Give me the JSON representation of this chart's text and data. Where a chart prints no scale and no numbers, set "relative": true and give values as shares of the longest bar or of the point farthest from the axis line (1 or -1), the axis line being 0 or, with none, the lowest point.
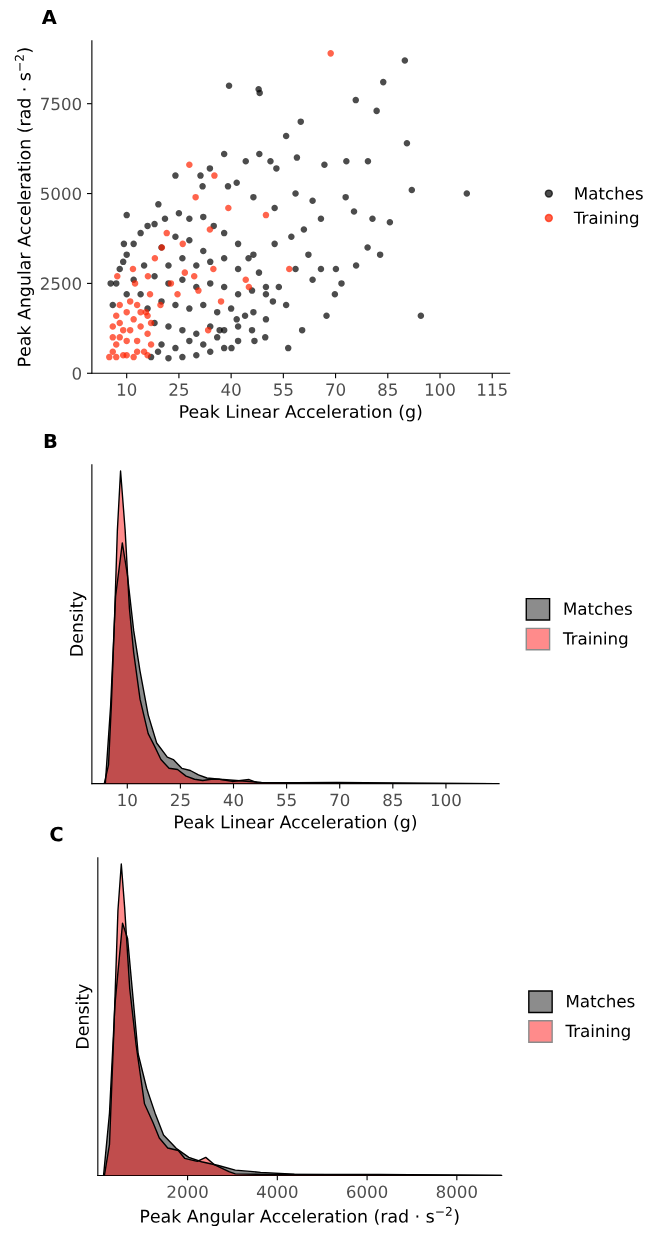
{
  "chart_data": [
    {
      "type": "scatter",
      "title": "A",
      "xlabel": "Peak Linear Acceleration (g)",
      "ylabel": "Peak Angular Acceleration (rad · s$^{−2}$)",
      "xlim": [
        0,
        120
      ],
      "xticks": [
        10,
        25,
        40,
        55,
        70,
        85,
        100,
        115
      ],
      "ylim": [
        0,
        9250
      ],
      "yticks": [
        0,
        2500,
        5000,
        7500
      ],
      "legend": "right",
      "marker": "circle",
      "grid": false,
      "series": [
        {
          "name": "Matches",
          "color": "#000000",
          "x": [
            39.4,
            47.9,
            48.2,
            89.9,
            83.7,
            75.8,
            81.8,
            60.0,
            55.8,
            90.5,
            38.0,
            48.1,
            79.3,
            73.1,
            66.8,
            58.9,
            91.9,
            107.7,
            72.9,
            75.3,
            80.6,
            85.6,
            79.2,
            82.8,
            75.9,
            70.1,
            71.7,
            69.8,
            67.4,
            94.5,
            60.4,
            56.4,
            49.8,
            46.7,
            40.1,
            24.0,
            31.2,
            33.9,
            31.8,
            44.2,
            51.3,
            53.0,
            39.1,
            41.6,
            19.1,
            46.4,
            52.5,
            58.5,
            63.4,
            65.8,
            60.9,
            57.3,
            52.5,
            46.4,
            62.2,
            65.8,
            58.5,
            63.4,
            53.7,
            50.0,
            55.8,
            46.4,
            41.6,
            36.7,
            10.0,
            9.2,
            5.4,
            6,
            7,
            8,
            9,
            10,
            12,
            14,
            16,
            18,
            21,
            25,
            28,
            32,
            35,
            38,
            42,
            45,
            48,
            50,
            52,
            50,
            46,
            42,
            38,
            34,
            30,
            26,
            22,
            20,
            24,
            28,
            32,
            22,
            26,
            30,
            34,
            38,
            42,
            18,
            22,
            26,
            30,
            34,
            38,
            42,
            46,
            20,
            24,
            28,
            32,
            36,
            40,
            44,
            18,
            22,
            26,
            30,
            34,
            38,
            42,
            20,
            24,
            28,
            32,
            36,
            15,
            12,
            10,
            14,
            16,
            19,
            17
          ],
          "values": [
            8000,
            7900,
            7800,
            8700,
            8100,
            7600,
            7300,
            7000,
            6600,
            6400,
            6100,
            6100,
            5900,
            5900,
            5800,
            6000,
            5100,
            5000,
            4900,
            4500,
            4300,
            4200,
            3500,
            3300,
            3000,
            2900,
            2500,
            2200,
            1600,
            1600,
            1200,
            700,
            1000,
            900,
            700,
            5500,
            5500,
            5700,
            5200,
            5900,
            5900,
            5700,
            5200,
            5300,
            4700,
            4900,
            4600,
            5000,
            4800,
            4300,
            4000,
            3800,
            3600,
            3300,
            3300,
            2900,
            2900,
            2600,
            2400,
            2200,
            1900,
            1700,
            1500,
            1200,
            4400,
            3600,
            2500,
            1900,
            2500,
            2900,
            3100,
            3300,
            3600,
            3900,
            4100,
            4150,
            4300,
            4450,
            4300,
            4350,
            4100,
            3900,
            3600,
            3200,
            2800,
            2400,
            2000,
            1500,
            1200,
            900,
            700,
            600,
            500,
            450,
            420,
            3500,
            3800,
            3700,
            3400,
            3000,
            3200,
            3000,
            3100,
            3200,
            2900,
            2700,
            2500,
            2600,
            2400,
            2500,
            2400,
            2200,
            2300,
            2000,
            1900,
            1800,
            1900,
            1700,
            1800,
            1600,
            1400,
            1300,
            1200,
            1100,
            1300,
            1200,
            1300,
            800,
            700,
            900,
            800,
            1000,
            3000,
            2600,
            2200,
            2200,
            1800,
            600,
            450
          ]
        },
        {
          "name": "Training",
          "color": "#ff2200",
          "x": [
            68.6,
            28.0,
            35.2,
            29.8,
            50.0,
            39.2,
            33.9,
            21.5,
            26.1,
            20.1,
            18.1,
            7.3,
            11.8,
            56.7,
            44.2,
            45.1,
            37.1,
            33.4,
            26.7,
            34.9,
            29.4,
            22.7,
            24.6,
            30.6,
            16.1,
            12.4,
            16.7,
            19.7,
            15.5,
            5,
            6,
            7,
            8,
            9,
            6,
            7,
            8,
            10,
            12,
            14,
            16,
            17,
            15,
            12,
            9,
            10,
            11,
            13,
            14,
            16,
            11,
            13,
            6,
            8,
            10,
            13,
            16,
            17,
            7
          ],
          "values": [
            8900,
            5800,
            5500,
            4900,
            4400,
            4600,
            4000,
            3900,
            3600,
            3500,
            3200,
            2700,
            2900,
            2900,
            2600,
            2400,
            2000,
            1200,
            2800,
            2900,
            2700,
            2500,
            2200,
            2300,
            2700,
            2500,
            2200,
            1900,
            1700,
            450,
            600,
            800,
            1000,
            1200,
            1300,
            1600,
            1900,
            1700,
            1500,
            1300,
            1100,
            800,
            600,
            450,
            500,
            900,
            1200,
            900,
            1700,
            1600,
            2000,
            1900,
            1000,
            1400,
            500,
            600,
            500,
            1400,
            450
          ]
        }
      ]
    },
    {
      "type": "area",
      "title": "B",
      "xlabel": "Peak Linear Acceleration (g)",
      "ylabel": "Density",
      "relative": true,
      "tick_labels": "x",
      "xlim": [
        0,
        115
      ],
      "xticks": [
        10,
        25,
        40,
        55,
        70,
        85,
        100
      ],
      "legend": "right",
      "grid": false,
      "series": [
        {
          "name": "Matches",
          "color": "#8c8c8c",
          "x": [
            3.8,
            5.3,
            6.7,
            8.6,
            10,
            11.8,
            13.6,
            15.9,
            18.3,
            21.3,
            23.0,
            25.4,
            27.8,
            30.1,
            32.5,
            36.1,
            40.8,
            47.9,
            57.4,
            69.2,
            92.9,
            114
          ],
          "values": [
            0,
            0.25,
            0.6,
            0.77,
            0.67,
            0.49,
            0.36,
            0.22,
            0.13,
            0.085,
            0.077,
            0.049,
            0.042,
            0.028,
            0.018,
            0.014,
            0.01,
            0.004,
            0.003,
            0.004,
            0.001,
            0
          ]
        },
        {
          "name": "Training",
          "color": "#ff0000",
          "x": [
            3.5,
            4.7,
            5.5,
            6.4,
            7.2,
            8.1,
            9.4,
            10.6,
            11.8,
            13.6,
            15.9,
            17.7,
            19.5,
            21.8,
            24.2,
            26.6,
            29.0,
            31.3,
            33.7,
            36.1,
            39.6,
            44.4,
            46.7,
            57.4,
            114
          ],
          "values": [
            0,
            0.06,
            0.25,
            0.53,
            0.81,
            1,
            0.81,
            0.56,
            0.42,
            0.27,
            0.16,
            0.12,
            0.077,
            0.049,
            0.045,
            0.024,
            0.014,
            0.01,
            0.014,
            0.014,
            0.007,
            0.013,
            0.003,
            0.001,
            0
          ]
        }
      ]
    },
    {
      "type": "area",
      "title": "C",
      "xlabel": "Peak Angular Acceleration (rad · s$^{−2}$)",
      "ylabel": "Density",
      "relative": true,
      "tick_labels": "x",
      "xlim": [
        0,
        9000
      ],
      "xticks": [
        2000,
        4000,
        6000,
        8000
      ],
      "legend": "right",
      "grid": false,
      "series": [
        {
          "name": "Matches",
          "color": "#8c8c8c",
          "x": [
            128,
            260,
            382,
            551,
            664,
            899,
            1088,
            1276,
            1464,
            1746,
            2028,
            2310,
            2687,
            3063,
            3627,
            4380,
            6261,
            8990
          ],
          "values": [
            0,
            0.2,
            0.55,
            0.81,
            0.76,
            0.39,
            0.28,
            0.2,
            0.13,
            0.087,
            0.058,
            0.044,
            0.032,
            0.017,
            0.01,
            0.004,
            0.003,
            0
          ]
        },
        {
          "name": "Training",
          "color": "#ff0000",
          "x": [
            147,
            260,
            354,
            448,
            523,
            598,
            711,
            852,
            1040,
            1229,
            1370,
            1558,
            1793,
            1934,
            2216,
            2405,
            2593,
            2922,
            3063,
            3910,
            8990
          ],
          "values": [
            0,
            0.1,
            0.45,
            0.85,
            1,
            0.86,
            0.6,
            0.42,
            0.23,
            0.17,
            0.12,
            0.088,
            0.08,
            0.055,
            0.045,
            0.058,
            0.035,
            0.012,
            0.005,
            0.003,
            0
          ]
        }
      ]
    }
  ]
}
